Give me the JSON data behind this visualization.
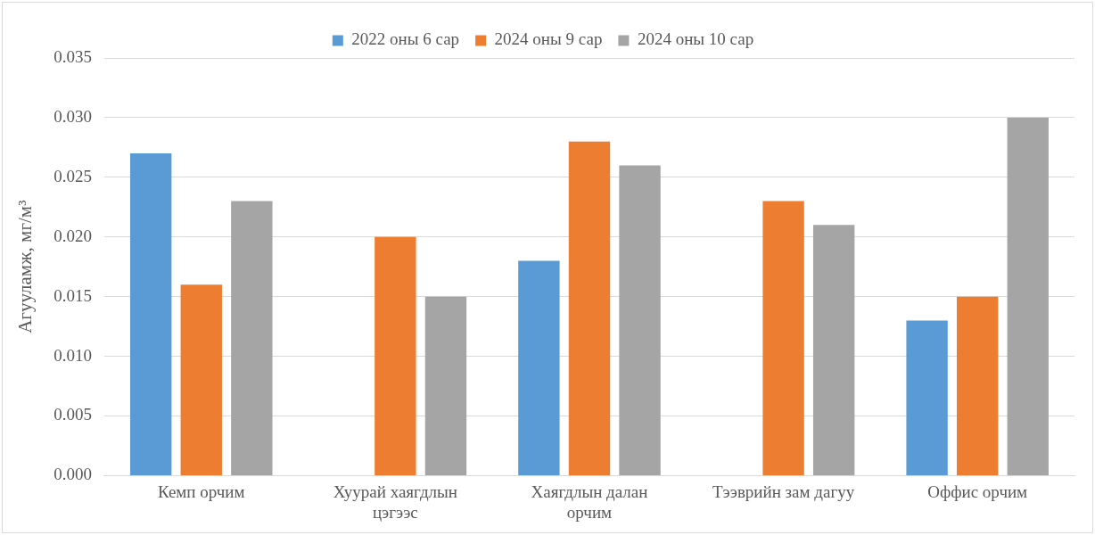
{
  "chart_data": {
    "type": "bar",
    "ylabel": "Агууламж, мг/м³",
    "categories": [
      "Кемп орчим",
      "Хуурай хаягдлын цэгээс",
      "Хаягдлын далан орчим",
      "Тээврийн зам дагуу",
      "Оффис орчим"
    ],
    "series": [
      {
        "name": "2022 оны 6 сар",
        "color": "#5b9bd5",
        "values": [
          0.027,
          null,
          0.018,
          null,
          0.013
        ]
      },
      {
        "name": "2024 оны 9 сар",
        "color": "#ed7d31",
        "values": [
          0.016,
          0.02,
          0.028,
          0.023,
          0.015
        ]
      },
      {
        "name": "2024 оны 10 сар",
        "color": "#a5a5a5",
        "values": [
          0.023,
          0.015,
          0.026,
          0.021,
          0.03
        ]
      }
    ],
    "ylim": [
      0,
      0.035
    ],
    "yticks": [
      {
        "value": 0,
        "label": "0.000"
      },
      {
        "value": 0.005,
        "label": "0.005"
      },
      {
        "value": 0.01,
        "label": "0.010"
      },
      {
        "value": 0.015,
        "label": "0.015"
      },
      {
        "value": 0.02,
        "label": "0.020"
      },
      {
        "value": 0.025,
        "label": "0.025"
      },
      {
        "value": 0.03,
        "label": "0.030"
      },
      {
        "value": 0.035,
        "label": "0.035"
      }
    ],
    "grid": "y",
    "legend": "top"
  }
}
